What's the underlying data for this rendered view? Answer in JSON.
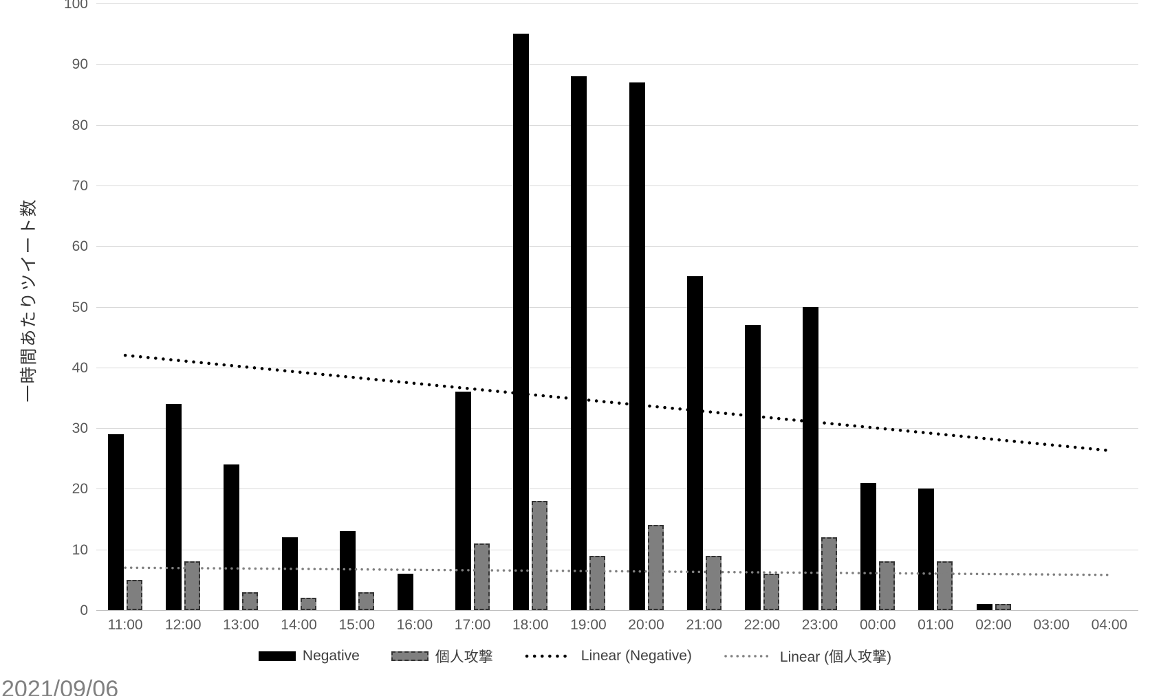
{
  "date_label": "2021/09/06",
  "chart_data": {
    "type": "bar",
    "title": "",
    "xlabel": "",
    "ylabel": "一時間あたりツイート数",
    "ylim": [
      0,
      100
    ],
    "ytick_step": 10,
    "grid": true,
    "legend_position": "bottom",
    "categories": [
      "11:00",
      "12:00",
      "13:00",
      "14:00",
      "15:00",
      "16:00",
      "17:00",
      "18:00",
      "19:00",
      "20:00",
      "21:00",
      "22:00",
      "23:00",
      "00:00",
      "01:00",
      "02:00",
      "03:00",
      "04:00"
    ],
    "series": [
      {
        "name": "Negative",
        "color": "#000000",
        "values": [
          29,
          34,
          24,
          12,
          13,
          6,
          36,
          95,
          88,
          87,
          55,
          47,
          50,
          21,
          20,
          1,
          0,
          0
        ]
      },
      {
        "name": "個人攻撃",
        "color": "#7f7f7f",
        "border_color": "#333333",
        "border_style": "dashed",
        "values": [
          5,
          8,
          3,
          2,
          3,
          0,
          11,
          18,
          9,
          14,
          9,
          6,
          12,
          8,
          8,
          1,
          0,
          0
        ]
      }
    ],
    "trendlines": [
      {
        "name": "Linear (Negative)",
        "color": "#000000",
        "start_value": 42.0,
        "end_value": 26.3,
        "dot_size": 4.5,
        "dot_gap": 11
      },
      {
        "name": "Linear (個人攻撃)",
        "color": "#7f7f7f",
        "start_value": 7.0,
        "end_value": 5.8,
        "dot_size": 3.5,
        "dot_gap": 8.5
      }
    ],
    "legend": [
      "Negative",
      "個人攻撃",
      "Linear (Negative)",
      "Linear (個人攻撃)"
    ]
  }
}
